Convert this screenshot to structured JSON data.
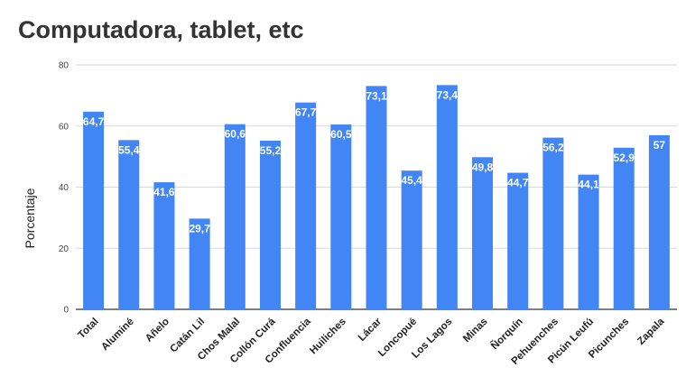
{
  "chart_data": {
    "type": "bar",
    "title": "Computadora, tablet, etc",
    "xlabel": "",
    "ylabel": "Porcentaje",
    "ylim": [
      0,
      80
    ],
    "yticks": [
      "0",
      "20",
      "40",
      "60",
      "80"
    ],
    "grid": true,
    "bar_color": "#4285f4",
    "categories": [
      "Total",
      "Aluminé",
      "Añelo",
      "Catán Lil",
      "Chos Malal",
      "Collón Curá",
      "Confluencia",
      "Huiliches",
      "Lácar",
      "Loncopué",
      "Los Lagos",
      "Minas",
      "Ñorquín",
      "Pehuenches",
      "Picún Leufú",
      "Picunches",
      "Zapala"
    ],
    "values": [
      64.7,
      55.4,
      41.6,
      29.7,
      60.6,
      55.2,
      67.7,
      60.5,
      73.1,
      45.4,
      73.4,
      49.8,
      44.7,
      56.2,
      44.1,
      52.9,
      57
    ],
    "value_labels": [
      "64,7",
      "55,4",
      "41,6",
      "29,7",
      "60,6",
      "55,2",
      "67,7",
      "60,5",
      "73,1",
      "45,4",
      "73,4",
      "49,8",
      "44,7",
      "56,2",
      "44,1",
      "52,9",
      "57"
    ]
  }
}
